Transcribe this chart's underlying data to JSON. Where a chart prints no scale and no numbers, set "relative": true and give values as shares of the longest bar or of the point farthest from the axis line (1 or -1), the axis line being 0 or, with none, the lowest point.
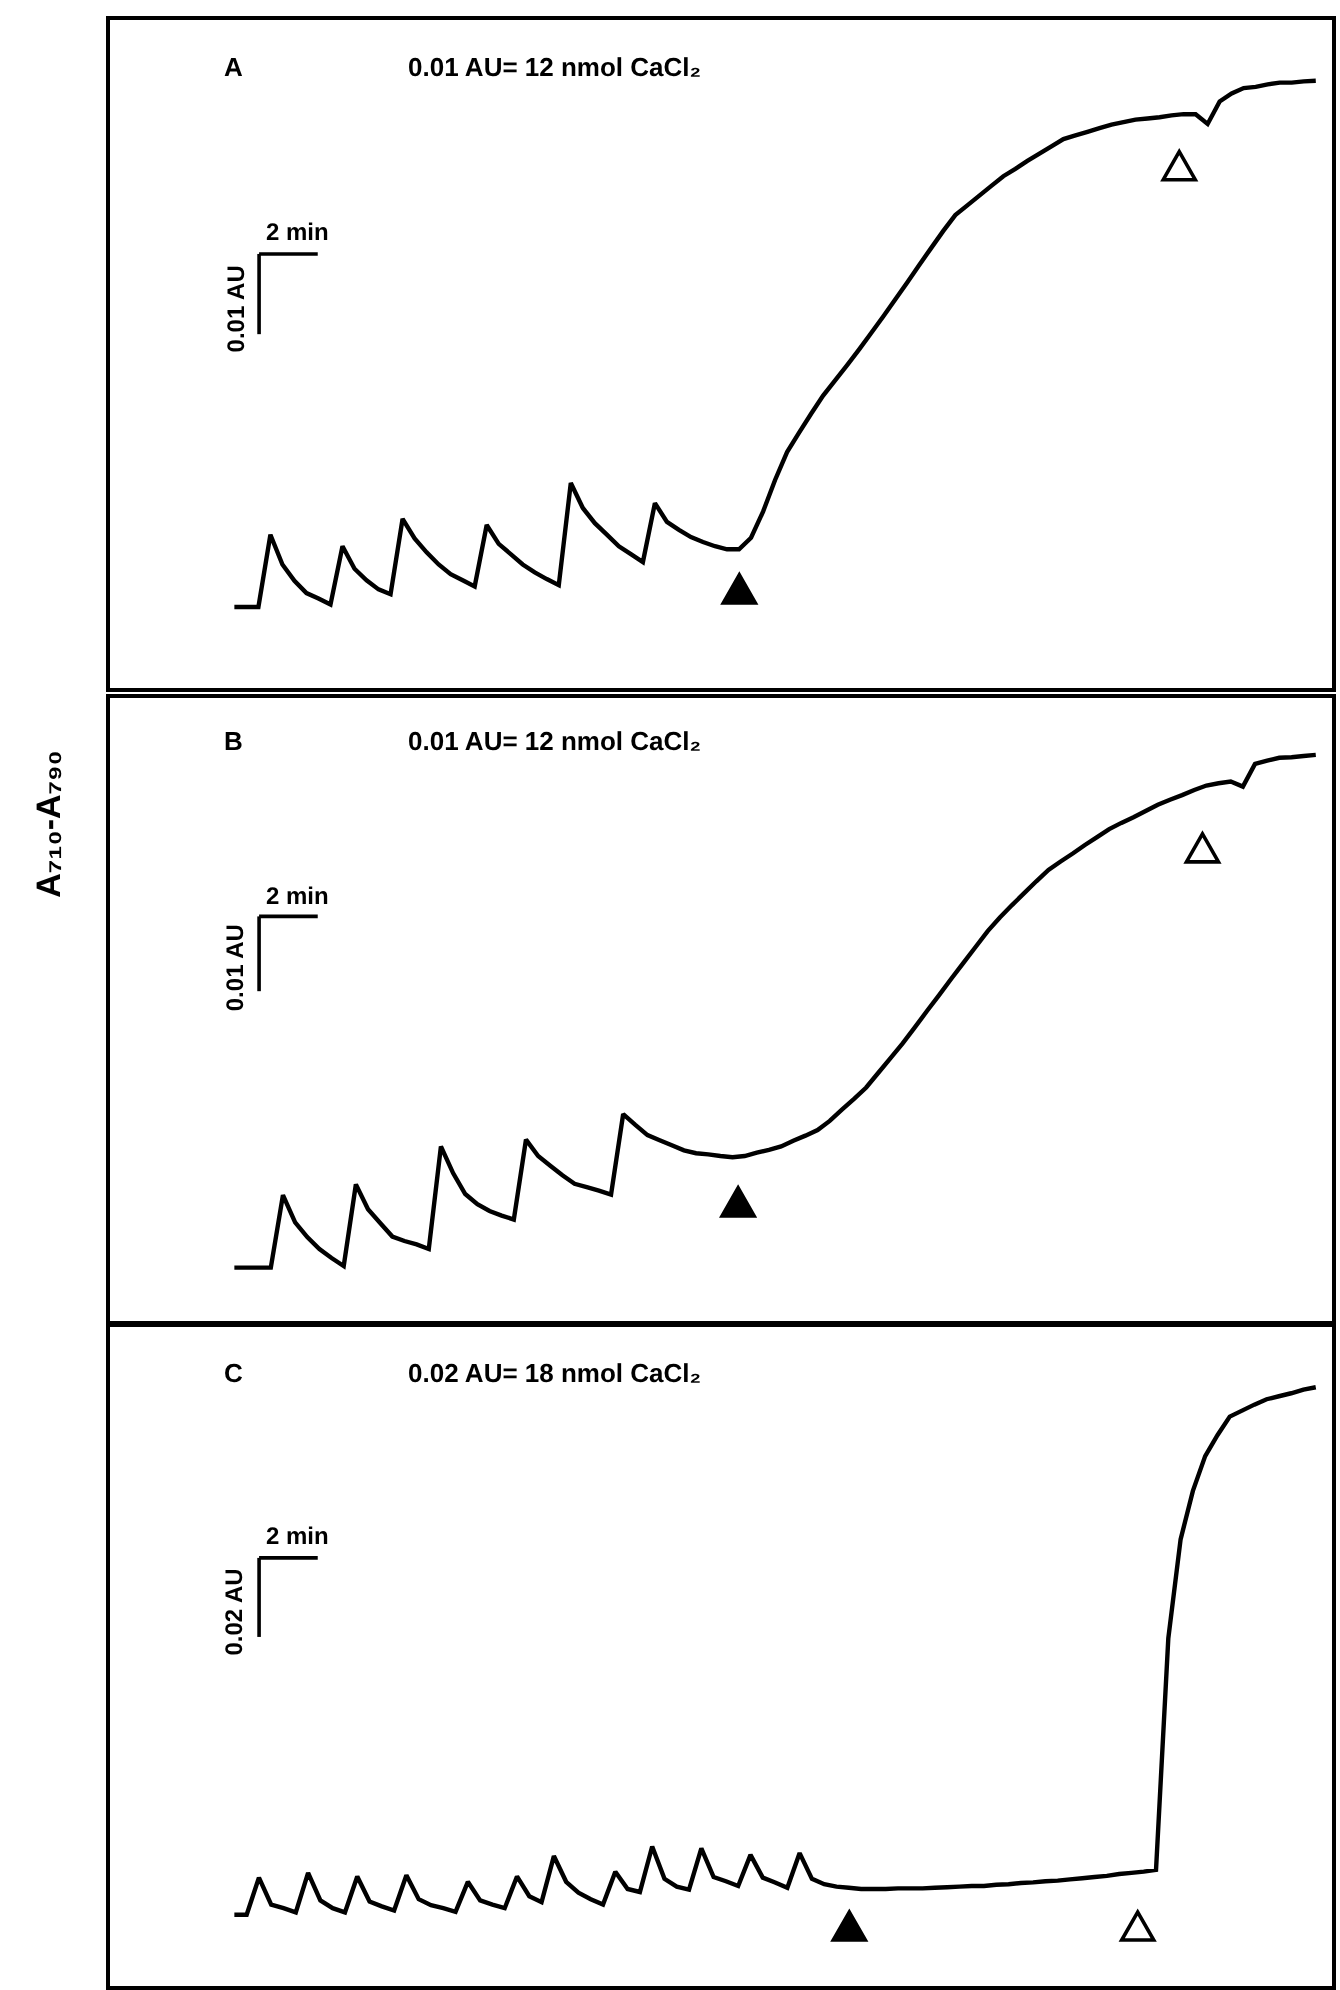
{
  "chart_data": [
    {
      "type": "line",
      "title": "A",
      "subtitle": "0.01 AU= 12 nmol CaCl₂",
      "relative": true,
      "tick_labels": false,
      "categories": [
        null,
        null,
        null,
        null,
        null,
        null,
        null,
        null,
        null,
        null,
        null,
        null,
        null,
        null,
        null,
        null,
        null,
        null,
        null,
        null,
        null,
        null,
        null,
        null,
        null,
        null,
        null,
        null,
        null,
        null,
        null,
        null,
        null,
        null,
        null,
        null,
        null,
        null,
        null,
        null,
        null,
        null,
        null,
        null,
        null,
        null,
        null,
        null,
        null,
        null,
        null,
        null,
        null,
        null,
        null,
        null,
        null,
        null,
        null,
        null,
        null,
        null,
        null,
        null,
        null,
        null,
        null,
        null,
        null,
        null,
        null,
        null,
        null,
        null,
        null,
        null,
        null,
        null,
        null,
        null,
        null,
        null,
        null,
        null,
        null,
        null,
        null,
        null,
        null,
        null,
        null
      ],
      "series": [
        {
          "color": "#000000",
          "values": [
            0.134,
            0.134,
            0.134,
            0.253,
            0.204,
            0.177,
            0.157,
            0.148,
            0.138,
            0.234,
            0.197,
            0.178,
            0.163,
            0.155,
            0.279,
            0.247,
            0.224,
            0.204,
            0.188,
            0.178,
            0.168,
            0.269,
            0.238,
            0.221,
            0.204,
            0.191,
            0.18,
            0.17,
            0.338,
            0.297,
            0.272,
            0.253,
            0.234,
            0.221,
            0.208,
            0.305,
            0.274,
            0.261,
            0.249,
            0.241,
            0.234,
            0.229,
            0.229,
            0.248,
            0.291,
            0.343,
            0.389,
            0.421,
            0.452,
            0.482,
            0.507,
            0.532,
            0.558,
            0.585,
            0.612,
            0.64,
            0.668,
            0.697,
            0.725,
            0.753,
            0.779,
            0.795,
            0.811,
            0.827,
            0.843,
            0.855,
            0.868,
            0.88,
            0.892,
            0.904,
            0.91,
            0.916,
            0.922,
            0.928,
            0.932,
            0.936,
            0.938,
            0.94,
            0.943,
            0.945,
            0.945,
            0.929,
            0.966,
            0.979,
            0.988,
            0.99,
            0.994,
            0.997,
            0.997,
            0.999,
            1
          ]
        }
      ],
      "annotations": [
        "0.01 AU",
        "2 min"
      ]
    },
    {
      "type": "line",
      "title": "B",
      "subtitle": "0.01 AU= 12 nmol CaCl₂",
      "ylabel": "A₇₁₀-A₇₉₀",
      "relative": true,
      "tick_labels": false,
      "categories": [
        null,
        null,
        null,
        null,
        null,
        null,
        null,
        null,
        null,
        null,
        null,
        null,
        null,
        null,
        null,
        null,
        null,
        null,
        null,
        null,
        null,
        null,
        null,
        null,
        null,
        null,
        null,
        null,
        null,
        null,
        null,
        null,
        null,
        null,
        null,
        null,
        null,
        null,
        null,
        null,
        null,
        null,
        null,
        null,
        null,
        null,
        null,
        null,
        null,
        null,
        null,
        null,
        null,
        null,
        null,
        null,
        null,
        null,
        null,
        null,
        null,
        null,
        null,
        null,
        null,
        null,
        null,
        null,
        null,
        null,
        null,
        null,
        null,
        null,
        null,
        null,
        null,
        null,
        null,
        null,
        null,
        null,
        null,
        null,
        null,
        null,
        null,
        null,
        null,
        null
      ],
      "series": [
        {
          "color": "#000000",
          "values": [
            0.095,
            0.095,
            0.095,
            0.095,
            0.223,
            0.175,
            0.149,
            0.128,
            0.112,
            0.098,
            0.242,
            0.198,
            0.174,
            0.15,
            0.142,
            0.136,
            0.128,
            0.309,
            0.262,
            0.225,
            0.207,
            0.195,
            0.187,
            0.18,
            0.321,
            0.292,
            0.275,
            0.258,
            0.243,
            0.237,
            0.231,
            0.224,
            0.366,
            0.347,
            0.329,
            0.32,
            0.311,
            0.302,
            0.297,
            0.295,
            0.292,
            0.29,
            0.292,
            0.298,
            0.303,
            0.309,
            0.319,
            0.328,
            0.338,
            0.354,
            0.374,
            0.393,
            0.413,
            0.439,
            0.465,
            0.491,
            0.519,
            0.548,
            0.576,
            0.605,
            0.633,
            0.661,
            0.689,
            0.713,
            0.735,
            0.756,
            0.777,
            0.797,
            0.812,
            0.826,
            0.841,
            0.855,
            0.869,
            0.88,
            0.89,
            0.901,
            0.912,
            0.921,
            0.929,
            0.938,
            0.946,
            0.95,
            0.953,
            0.944,
            0.984,
            0.99,
            0.995,
            0.996,
            0.998,
            1
          ]
        }
      ],
      "annotations": [
        "0.01 AU",
        "2 min"
      ]
    },
    {
      "type": "line",
      "title": "C",
      "subtitle": "0.02 AU= 18 nmol CaCl₂",
      "relative": true,
      "tick_labels": false,
      "categories": [
        null,
        null,
        null,
        null,
        null,
        null,
        null,
        null,
        null,
        null,
        null,
        null,
        null,
        null,
        null,
        null,
        null,
        null,
        null,
        null,
        null,
        null,
        null,
        null,
        null,
        null,
        null,
        null,
        null,
        null,
        null,
        null,
        null,
        null,
        null,
        null,
        null,
        null,
        null,
        null,
        null,
        null,
        null,
        null,
        null,
        null,
        null,
        null,
        null,
        null,
        null,
        null,
        null,
        null,
        null,
        null,
        null,
        null,
        null,
        null,
        null,
        null,
        null,
        null,
        null,
        null,
        null,
        null,
        null,
        null,
        null,
        null,
        null,
        null,
        null,
        null,
        null,
        null,
        null,
        null,
        null,
        null,
        null,
        null,
        null,
        null,
        null,
        null,
        null
      ],
      "series": [
        {
          "color": "#000000",
          "values": [
            0.119,
            0.119,
            0.181,
            0.136,
            0.13,
            0.123,
            0.189,
            0.143,
            0.13,
            0.123,
            0.183,
            0.141,
            0.133,
            0.126,
            0.185,
            0.145,
            0.135,
            0.13,
            0.124,
            0.174,
            0.143,
            0.136,
            0.13,
            0.183,
            0.15,
            0.14,
            0.217,
            0.174,
            0.156,
            0.145,
            0.136,
            0.191,
            0.162,
            0.157,
            0.233,
            0.179,
            0.166,
            0.161,
            0.23,
            0.182,
            0.175,
            0.167,
            0.219,
            0.181,
            0.173,
            0.164,
            0.222,
            0.179,
            0.17,
            0.166,
            0.164,
            0.162,
            0.162,
            0.162,
            0.163,
            0.163,
            0.163,
            0.164,
            0.165,
            0.166,
            0.167,
            0.167,
            0.169,
            0.17,
            0.172,
            0.173,
            0.175,
            0.176,
            0.178,
            0.18,
            0.182,
            0.184,
            0.187,
            0.189,
            0.191,
            0.194,
            0.581,
            0.746,
            0.827,
            0.885,
            0.92,
            0.951,
            0.961,
            0.971,
            0.98,
            0.985,
            0.99,
            0.996,
            1
          ]
        }
      ],
      "annotations": [
        "0.02 AU",
        "2 min"
      ]
    }
  ]
}
